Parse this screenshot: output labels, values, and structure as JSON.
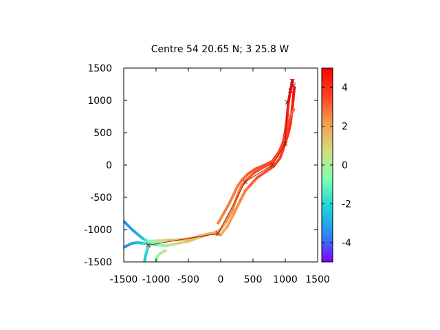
{
  "chart_data": {
    "type": "scatter",
    "title": "Centre 54 20.65 N; 3 25.8 W",
    "xlabel": "",
    "ylabel": "",
    "xlim": [
      -1500,
      1500
    ],
    "ylim": [
      -1500,
      1500
    ],
    "xticks": [
      -1500,
      -1000,
      -500,
      0,
      500,
      1000,
      1500
    ],
    "yticks": [
      -1500,
      -1000,
      -500,
      0,
      500,
      1000,
      1500
    ],
    "grid": false,
    "colorbar": {
      "range": [
        -5,
        5
      ],
      "ticks": [
        -4,
        -2,
        0,
        2,
        4
      ],
      "palette": [
        "#7f00ff",
        "#2a8cf2",
        "#1ed4d4",
        "#80ffb4",
        "#d4dd80",
        "#f0a050",
        "#ff4020",
        "#ff0000"
      ]
    },
    "series": [
      {
        "kind": "track",
        "points": [
          [
            -1520,
            -850,
            -3.6
          ],
          [
            -1450,
            -920,
            -3.4
          ],
          [
            -1380,
            -990,
            -3.2
          ],
          [
            -1300,
            -1060,
            -3.0
          ],
          [
            -1230,
            -1120,
            -2.8
          ],
          [
            -1170,
            -1160,
            -2.2
          ],
          [
            -1120,
            -1180,
            -1.0
          ],
          [
            -1050,
            -1175,
            0.0
          ],
          [
            -950,
            -1170,
            0.6
          ],
          [
            -850,
            -1165,
            1.0
          ],
          [
            -700,
            -1160,
            1.4
          ],
          [
            -550,
            -1150,
            1.6
          ],
          [
            -400,
            -1120,
            1.8
          ],
          [
            -250,
            -1080,
            2.0
          ],
          [
            -100,
            -1050,
            2.2
          ],
          [
            0,
            -1000,
            2.0
          ],
          [
            80,
            -880,
            2.2
          ],
          [
            180,
            -700,
            2.4
          ],
          [
            250,
            -500,
            2.6
          ],
          [
            320,
            -330,
            2.8
          ],
          [
            400,
            -230,
            3.0
          ],
          [
            520,
            -120,
            3.2
          ],
          [
            650,
            -40,
            3.4
          ],
          [
            780,
            20,
            3.4
          ],
          [
            880,
            150,
            3.6
          ],
          [
            960,
            320,
            3.8
          ],
          [
            1000,
            520,
            4.0
          ],
          [
            1030,
            760,
            4.2
          ],
          [
            1050,
            980,
            4.4
          ],
          [
            1080,
            1150,
            4.6
          ],
          [
            1110,
            1310,
            4.8
          ]
        ]
      },
      {
        "kind": "track",
        "points": [
          [
            -1530,
            -1290,
            -3.8
          ],
          [
            -1450,
            -1250,
            -3.5
          ],
          [
            -1380,
            -1215,
            -3.2
          ],
          [
            -1300,
            -1200,
            -2.8
          ],
          [
            -1200,
            -1210,
            -2.2
          ],
          [
            -1100,
            -1225,
            -1.6
          ],
          [
            -950,
            -1240,
            -0.8
          ],
          [
            -850,
            -1250,
            -0.4
          ],
          [
            -700,
            -1220,
            0.6
          ],
          [
            -500,
            -1180,
            1.2
          ],
          [
            -300,
            -1110,
            1.6
          ],
          [
            -150,
            -1060,
            1.8
          ],
          [
            0,
            -1080,
            1.6
          ],
          [
            100,
            -960,
            1.8
          ],
          [
            200,
            -760,
            2.2
          ],
          [
            300,
            -560,
            2.4
          ],
          [
            380,
            -400,
            2.6
          ],
          [
            450,
            -320,
            3.0
          ],
          [
            560,
            -200,
            3.2
          ],
          [
            700,
            -100,
            3.4
          ],
          [
            820,
            -20,
            3.6
          ],
          [
            920,
            110,
            3.6
          ],
          [
            980,
            280,
            3.8
          ],
          [
            1040,
            470,
            4.0
          ],
          [
            1080,
            640,
            4.2
          ],
          [
            1100,
            820,
            4.4
          ],
          [
            1120,
            1000,
            4.6
          ],
          [
            1140,
            1200,
            4.8
          ]
        ]
      },
      {
        "kind": "track",
        "points": [
          [
            -1180,
            -1520,
            -2.6
          ],
          [
            -1170,
            -1440,
            -2.4
          ],
          [
            -1150,
            -1360,
            -2.2
          ],
          [
            -1130,
            -1290,
            -2.0
          ],
          [
            -1100,
            -1240,
            -1.6
          ],
          [
            -1060,
            -1200,
            -0.8
          ],
          [
            -1000,
            -1190,
            -0.2
          ],
          [
            -900,
            -1185,
            0.4
          ]
        ]
      },
      {
        "kind": "track",
        "points": [
          [
            -1000,
            -1520,
            -0.6
          ],
          [
            -990,
            -1450,
            -0.4
          ],
          [
            -970,
            -1400,
            -0.2
          ],
          [
            -940,
            -1370,
            0.0
          ],
          [
            -900,
            -1345,
            0.2
          ],
          [
            -850,
            -1325,
            0.4
          ]
        ]
      },
      {
        "kind": "track",
        "points": [
          [
            -40,
            -900,
            2.4
          ],
          [
            40,
            -760,
            2.6
          ],
          [
            120,
            -620,
            2.6
          ],
          [
            200,
            -460,
            2.6
          ],
          [
            260,
            -330,
            2.6
          ],
          [
            330,
            -230,
            2.8
          ],
          [
            420,
            -140,
            3.0
          ],
          [
            540,
            -60,
            3.2
          ],
          [
            680,
            0,
            3.4
          ],
          [
            800,
            60,
            3.4
          ],
          [
            900,
            200,
            3.4
          ],
          [
            980,
            380,
            3.6
          ],
          [
            1040,
            600,
            3.6
          ],
          [
            1090,
            780,
            3.2
          ],
          [
            1130,
            860,
            3.0
          ]
        ]
      },
      {
        "kind": "path",
        "color": "#9b1b1b",
        "points": [
          [
            -1120,
            -1240
          ],
          [
            -40,
            -1060
          ],
          [
            380,
            -260
          ],
          [
            800,
            0
          ],
          [
            1000,
            330
          ],
          [
            1030,
            970
          ],
          [
            1110,
            1300
          ]
        ]
      },
      {
        "kind": "path",
        "color": "#9b1b1b",
        "points": [
          [
            1080,
            1150
          ],
          [
            1110,
            1300
          ],
          [
            1130,
            1230
          ]
        ]
      }
    ]
  }
}
